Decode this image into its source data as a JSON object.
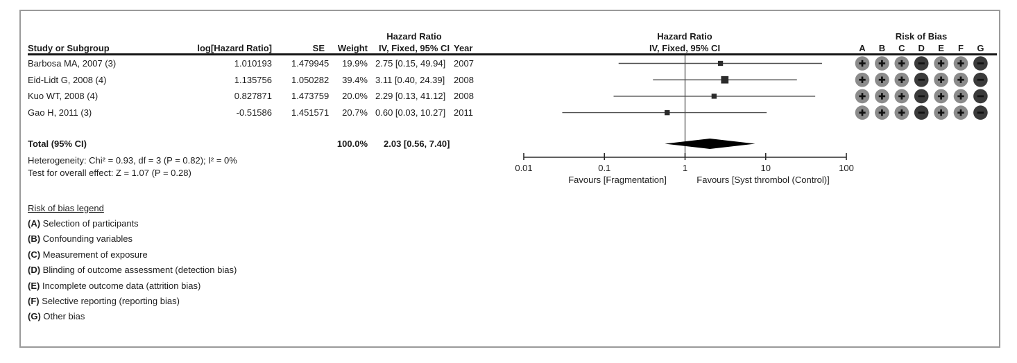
{
  "table": {
    "headers": {
      "study": "Study or Subgroup",
      "loghr": "log[Hazard Ratio]",
      "se": "SE",
      "weight": "Weight",
      "hr_title": "Hazard Ratio",
      "ci": "IV, Fixed, 95% CI",
      "year": "Year"
    },
    "rows": [
      {
        "study": "Barbosa MA, 2007 (3)",
        "loghr": "1.010193",
        "se": "1.479945",
        "weight": "19.9%",
        "ci": "2.75 [0.15, 49.94]",
        "year": "2007"
      },
      {
        "study": "Eid-Lidt G, 2008 (4)",
        "loghr": "1.135756",
        "se": "1.050282",
        "weight": "39.4%",
        "ci": "3.11 [0.40, 24.39]",
        "year": "2008"
      },
      {
        "study": "Kuo WT, 2008 (4)",
        "loghr": "0.827871",
        "se": "1.473759",
        "weight": "20.0%",
        "ci": "2.29 [0.13, 41.12]",
        "year": "2008"
      },
      {
        "study": "Gao H, 2011 (3)",
        "loghr": "-0.51586",
        "se": "1.451571",
        "weight": "20.7%",
        "ci": "0.60 [0.03, 10.27]",
        "year": "2011"
      }
    ],
    "total": {
      "label": "Total (95% CI)",
      "weight": "100.0%",
      "ci": "2.03 [0.56, 7.40]"
    }
  },
  "stats": {
    "heterogeneity": "Heterogeneity: Chi² = 0.93, df = 3 (P = 0.82); I² = 0%",
    "overall_effect": "Test for overall effect: Z = 1.07 (P = 0.28)"
  },
  "plot": {
    "title1": "Hazard Ratio",
    "title2": "IV, Fixed, 95% CI",
    "tick_labels": [
      "0.01",
      "0.1",
      "1",
      "10",
      "100"
    ],
    "favours_left": "Favours [Fragmentation]",
    "favours_right": "Favours [Syst thrombol (Control)]"
  },
  "risk_of_bias": {
    "title": "Risk of Bias",
    "columns": [
      "A",
      "B",
      "C",
      "D",
      "E",
      "F",
      "G"
    ],
    "matrix": [
      [
        "+",
        "+",
        "+",
        "-",
        "+",
        "+",
        "-"
      ],
      [
        "+",
        "+",
        "+",
        "-",
        "+",
        "+",
        "-"
      ],
      [
        "+",
        "+",
        "+",
        "-",
        "+",
        "+",
        "-"
      ],
      [
        "+",
        "+",
        "+",
        "-",
        "+",
        "+",
        "-"
      ]
    ],
    "colors": {
      "plus_circle": "#8b8b8b",
      "minus_circle": "#3b3b3b",
      "symbol": "#111111"
    }
  },
  "rob_legend": {
    "title": "Risk of bias legend",
    "items": [
      {
        "key": "A",
        "text": "Selection of participants"
      },
      {
        "key": "B",
        "text": "Confounding variables"
      },
      {
        "key": "C",
        "text": "Measurement of exposure"
      },
      {
        "key": "D",
        "text": "Blinding of outcome assessment (detection bias)"
      },
      {
        "key": "E",
        "text": "Incomplete outcome data (attrition bias)"
      },
      {
        "key": "F",
        "text": "Selective reporting (reporting bias)"
      },
      {
        "key": "G",
        "text": "Other bias"
      }
    ]
  },
  "chart_data": {
    "type": "forest",
    "effect_measure": "Hazard Ratio",
    "model": "IV, Fixed, 95% CI",
    "x_scale": "log10",
    "xlim": [
      0.01,
      100
    ],
    "x_ticks": [
      0.01,
      0.1,
      1,
      10,
      100
    ],
    "null_line": 1,
    "studies": [
      {
        "name": "Barbosa MA, 2007 (3)",
        "hr": 2.75,
        "ci_low": 0.15,
        "ci_high": 49.94,
        "weight_pct": 19.9,
        "year": 2007
      },
      {
        "name": "Eid-Lidt G, 2008 (4)",
        "hr": 3.11,
        "ci_low": 0.4,
        "ci_high": 24.39,
        "weight_pct": 39.4,
        "year": 2008
      },
      {
        "name": "Kuo WT, 2008 (4)",
        "hr": 2.29,
        "ci_low": 0.13,
        "ci_high": 41.12,
        "weight_pct": 20.0,
        "year": 2008
      },
      {
        "name": "Gao H, 2011 (3)",
        "hr": 0.6,
        "ci_low": 0.03,
        "ci_high": 10.27,
        "weight_pct": 20.7,
        "year": 2011
      }
    ],
    "total": {
      "label": "Total (95% CI)",
      "hr": 2.03,
      "ci_low": 0.56,
      "ci_high": 7.4,
      "weight_pct": 100.0
    }
  }
}
